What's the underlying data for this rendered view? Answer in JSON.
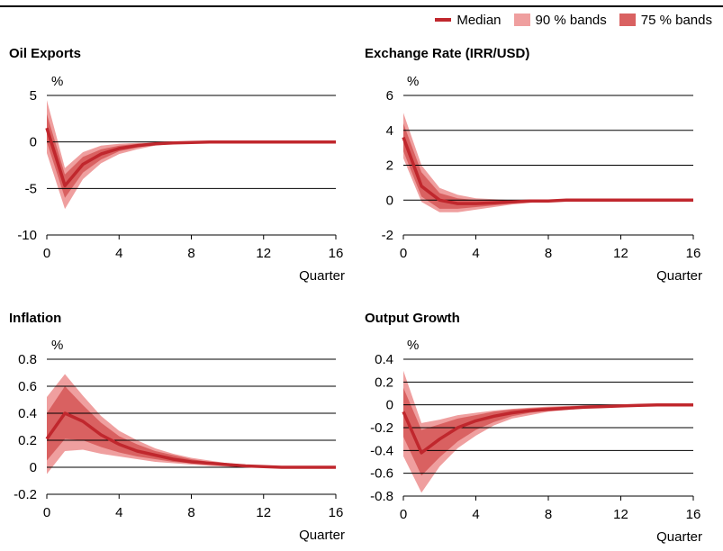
{
  "legend": {
    "median": "Median",
    "band90": "90 % bands",
    "band75": "75 % bands"
  },
  "colors": {
    "median": "#c0272d",
    "band90": "#ef9f9f",
    "band75": "#d96161",
    "grid": "#000000"
  },
  "chart_data": [
    {
      "type": "line",
      "title": "Oil Exports",
      "ylabel": "%",
      "xlabel": "Quarter",
      "xlim": [
        0,
        16
      ],
      "ylim": [
        -10,
        5
      ],
      "xticks": [
        0,
        4,
        8,
        12,
        16
      ],
      "yticks": [
        5,
        0,
        -5,
        -10
      ],
      "ytick_labels": [
        "5",
        "0",
        "-5",
        "-10"
      ],
      "x": [
        0,
        1,
        2,
        3,
        4,
        5,
        6,
        7,
        8,
        9,
        10,
        11,
        12,
        13,
        14,
        15,
        16
      ],
      "series": [
        {
          "key": "median",
          "values": [
            1.5,
            -4.7,
            -2.4,
            -1.3,
            -0.7,
            -0.4,
            -0.2,
            -0.1,
            -0.05,
            0,
            0,
            0,
            0,
            0,
            0,
            0,
            0
          ]
        },
        {
          "key": "band75_upper",
          "values": [
            3.0,
            -3.5,
            -1.6,
            -0.8,
            -0.4,
            -0.2,
            -0.1,
            -0.05,
            0,
            0,
            0,
            0,
            0,
            0,
            0,
            0,
            0
          ]
        },
        {
          "key": "band75_lower",
          "values": [
            0.0,
            -6.0,
            -3.3,
            -1.9,
            -1.0,
            -0.6,
            -0.3,
            -0.15,
            -0.1,
            -0.05,
            0,
            0,
            0,
            0,
            0,
            0,
            0
          ]
        },
        {
          "key": "band90_upper",
          "values": [
            4.5,
            -2.8,
            -1.1,
            -0.4,
            -0.2,
            -0.1,
            -0.05,
            0,
            0,
            0,
            0,
            0,
            0,
            0,
            0,
            0,
            0
          ]
        },
        {
          "key": "band90_lower",
          "values": [
            -1.2,
            -7.2,
            -4.0,
            -2.3,
            -1.3,
            -0.8,
            -0.4,
            -0.2,
            -0.1,
            -0.05,
            0,
            0,
            0,
            0,
            0,
            0,
            0
          ]
        }
      ]
    },
    {
      "type": "line",
      "title": "Exchange Rate (IRR/USD)",
      "ylabel": "%",
      "xlabel": "Quarter",
      "xlim": [
        0,
        16
      ],
      "ylim": [
        -2,
        6
      ],
      "xticks": [
        0,
        4,
        8,
        12,
        16
      ],
      "yticks": [
        6,
        4,
        2,
        0,
        -2
      ],
      "ytick_labels": [
        "6",
        "4",
        "2",
        "0",
        "-2"
      ],
      "x": [
        0,
        1,
        2,
        3,
        4,
        5,
        6,
        7,
        8,
        9,
        10,
        11,
        12,
        13,
        14,
        15,
        16
      ],
      "series": [
        {
          "key": "median",
          "values": [
            3.6,
            0.8,
            0.0,
            -0.2,
            -0.2,
            -0.15,
            -0.1,
            -0.05,
            -0.05,
            0,
            0,
            0,
            0,
            0,
            0,
            0,
            0
          ]
        },
        {
          "key": "band75_upper",
          "values": [
            4.4,
            1.6,
            0.4,
            0.1,
            0.0,
            0,
            0,
            0,
            0,
            0,
            0,
            0,
            0,
            0,
            0,
            0,
            0
          ]
        },
        {
          "key": "band75_lower",
          "values": [
            2.8,
            0.2,
            -0.5,
            -0.5,
            -0.4,
            -0.3,
            -0.2,
            -0.1,
            -0.05,
            0,
            0,
            0,
            0,
            0,
            0,
            0,
            0
          ]
        },
        {
          "key": "band90_upper",
          "values": [
            5.0,
            2.0,
            0.7,
            0.3,
            0.1,
            0.05,
            0,
            0,
            0,
            0,
            0,
            0,
            0,
            0,
            0,
            0,
            0
          ]
        },
        {
          "key": "band90_lower",
          "values": [
            2.4,
            -0.1,
            -0.7,
            -0.7,
            -0.55,
            -0.4,
            -0.25,
            -0.15,
            -0.05,
            0,
            0,
            0,
            0,
            0,
            0,
            0,
            0
          ]
        }
      ]
    },
    {
      "type": "line",
      "title": "Inflation",
      "ylabel": "%",
      "xlabel": "Quarter",
      "xlim": [
        0,
        16
      ],
      "ylim": [
        -0.2,
        0.8
      ],
      "xticks": [
        0,
        4,
        8,
        12,
        16
      ],
      "yticks": [
        0.8,
        0.6,
        0.4,
        0.2,
        0,
        -0.2
      ],
      "ytick_labels": [
        "0.8",
        "0.6",
        "0.4",
        "0.2",
        "0",
        "-0.2"
      ],
      "x": [
        0,
        1,
        2,
        3,
        4,
        5,
        6,
        7,
        8,
        9,
        10,
        11,
        12,
        13,
        14,
        15,
        16
      ],
      "series": [
        {
          "key": "median",
          "values": [
            0.21,
            0.4,
            0.34,
            0.24,
            0.17,
            0.12,
            0.09,
            0.06,
            0.04,
            0.03,
            0.02,
            0.01,
            0.005,
            0,
            0,
            0,
            0
          ]
        },
        {
          "key": "band75_upper",
          "values": [
            0.4,
            0.6,
            0.46,
            0.33,
            0.23,
            0.17,
            0.12,
            0.09,
            0.06,
            0.04,
            0.03,
            0.02,
            0.01,
            0.005,
            0,
            0,
            0
          ]
        },
        {
          "key": "band75_lower",
          "values": [
            0.05,
            0.21,
            0.2,
            0.15,
            0.11,
            0.08,
            0.06,
            0.04,
            0.03,
            0.02,
            0.01,
            0.005,
            0,
            0,
            0,
            0,
            0
          ]
        },
        {
          "key": "band90_upper",
          "values": [
            0.52,
            0.69,
            0.53,
            0.38,
            0.27,
            0.2,
            0.14,
            0.1,
            0.07,
            0.05,
            0.03,
            0.02,
            0.01,
            0.005,
            0,
            0,
            0
          ]
        },
        {
          "key": "band90_lower",
          "values": [
            -0.05,
            0.12,
            0.13,
            0.1,
            0.08,
            0.06,
            0.04,
            0.03,
            0.02,
            0.01,
            0.005,
            0,
            0,
            0,
            0,
            0,
            0
          ]
        }
      ]
    },
    {
      "type": "line",
      "title": "Output Growth",
      "ylabel": "%",
      "xlabel": "Quarter",
      "xlim": [
        0,
        16
      ],
      "ylim": [
        -0.8,
        0.4
      ],
      "xticks": [
        0,
        4,
        8,
        12,
        16
      ],
      "yticks": [
        0.4,
        0.2,
        0,
        -0.2,
        -0.4,
        -0.6,
        -0.8
      ],
      "ytick_labels": [
        "0.4",
        "0.2",
        "0",
        "-0.2",
        "-0.4",
        "-0.6",
        "-0.8"
      ],
      "x": [
        0,
        1,
        2,
        3,
        4,
        5,
        6,
        7,
        8,
        9,
        10,
        11,
        12,
        13,
        14,
        15,
        16
      ],
      "series": [
        {
          "key": "median",
          "values": [
            -0.06,
            -0.42,
            -0.3,
            -0.2,
            -0.14,
            -0.1,
            -0.07,
            -0.05,
            -0.04,
            -0.03,
            -0.02,
            -0.015,
            -0.01,
            -0.005,
            0,
            0,
            0
          ]
        },
        {
          "key": "band75_upper",
          "values": [
            0.15,
            -0.22,
            -0.17,
            -0.12,
            -0.09,
            -0.06,
            -0.04,
            -0.03,
            -0.02,
            -0.015,
            -0.01,
            -0.005,
            0,
            0,
            0,
            0,
            0
          ]
        },
        {
          "key": "band75_lower",
          "values": [
            -0.28,
            -0.62,
            -0.46,
            -0.32,
            -0.22,
            -0.15,
            -0.1,
            -0.07,
            -0.05,
            -0.04,
            -0.03,
            -0.02,
            -0.01,
            -0.005,
            0,
            0,
            0
          ]
        },
        {
          "key": "band90_upper",
          "values": [
            0.3,
            -0.16,
            -0.13,
            -0.09,
            -0.07,
            -0.05,
            -0.035,
            -0.025,
            -0.015,
            -0.01,
            -0.005,
            0,
            0,
            0,
            0,
            0,
            0
          ]
        },
        {
          "key": "band90_lower",
          "values": [
            -0.45,
            -0.77,
            -0.54,
            -0.38,
            -0.27,
            -0.18,
            -0.12,
            -0.09,
            -0.06,
            -0.045,
            -0.03,
            -0.02,
            -0.01,
            -0.005,
            0,
            0,
            0
          ]
        }
      ]
    }
  ]
}
